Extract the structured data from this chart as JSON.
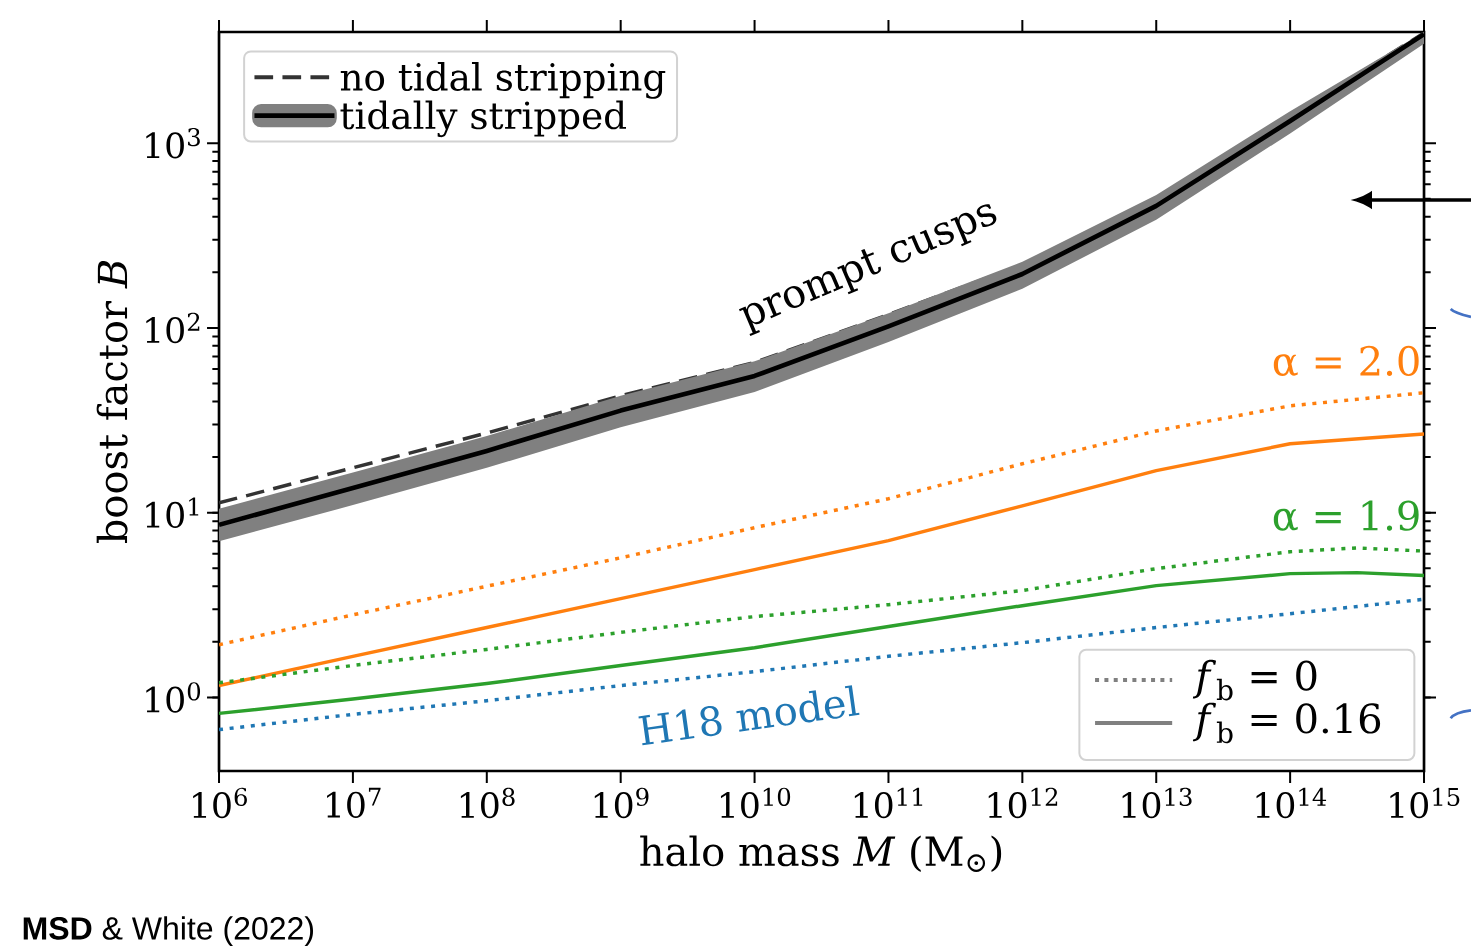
{
  "chart_data": {
    "type": "line",
    "xlabel": "halo mass *M* (M$_{⊙}$)",
    "ylabel": "boost factor *B*",
    "log": "xy",
    "legend": "top left",
    "marker": "none",
    "xlim": [
      1000000,
      1000000000000000
    ],
    "ylim": [
      0.4,
      4000
    ],
    "xticks": [
      {
        "value": 1000000.0,
        "label": "10$^{6}$"
      },
      {
        "value": 10000000.0,
        "label": "10$^{7}$"
      },
      {
        "value": 100000000.0,
        "label": "10$^{8}$"
      },
      {
        "value": 1000000000.0,
        "label": "10$^{9}$"
      },
      {
        "value": 10000000000.0,
        "label": "10$^{10}$"
      },
      {
        "value": 100000000000.0,
        "label": "10$^{11}$"
      },
      {
        "value": 1000000000000.0,
        "label": "10$^{12}$"
      },
      {
        "value": 10000000000000.0,
        "label": "10$^{13}$"
      },
      {
        "value": 100000000000000.0,
        "label": "10$^{14}$"
      },
      {
        "value": 1000000000000000.0,
        "label": "10$^{15}$"
      }
    ],
    "yticks": [
      {
        "value": 1,
        "label": "10$^{0}$"
      },
      {
        "value": 10,
        "label": "10$^{1}$"
      },
      {
        "value": 100,
        "label": "10$^{2}$"
      },
      {
        "value": 1000,
        "label": "10$^{3}$"
      }
    ],
    "x": [
      1000000.0,
      10000000.0,
      100000000.0,
      1000000000.0,
      10000000000.0,
      100000000000.0,
      1000000000000.0,
      10000000000000.0,
      100000000000000.0,
      1000000000000000.0
    ],
    "series": [
      {
        "name": "no tidal stripping",
        "color": "#333333",
        "line_style": "dashed",
        "values": [
          11.3,
          17.5,
          27,
          43,
          65,
          118,
          220,
          500,
          1400,
          3950
        ]
      },
      {
        "name": "tidally stripped",
        "color": "#000000",
        "line_style": "solid",
        "values": [
          8.6,
          13.6,
          21.6,
          35.7,
          55,
          102,
          196,
          458,
          1320,
          3890
        ],
        "lower": [
          7.0,
          11,
          17.5,
          29,
          45,
          84,
          163,
          385,
          1130,
          3450
        ],
        "upper": [
          10.5,
          16.5,
          26,
          43,
          66,
          120,
          228,
          525,
          1490,
          4000
        ]
      },
      {
        "color": "#ff7f0e",
        "line_style": "dotted",
        "values": [
          1.93,
          2.8,
          4.0,
          5.7,
          8.3,
          11.9,
          18.4,
          27.7,
          37.9,
          44.6
        ]
      },
      {
        "color": "#ff7f0e",
        "line_style": "solid",
        "values": [
          1.16,
          1.67,
          2.39,
          3.43,
          4.92,
          7.06,
          10.9,
          16.9,
          23.6,
          26.7
        ]
      },
      {
        "color": "#2ca02c",
        "line_style": "dotted",
        "x": [
          1000000.0,
          10000000.0,
          100000000.0,
          1000000000.0,
          10000000000.0,
          100000000000.0,
          1000000000000.0,
          10000000000000.0,
          100000000000000.0,
          316000000000000.0,
          1000000000000000.0
        ],
        "values": [
          1.2,
          1.49,
          1.82,
          2.25,
          2.74,
          3.18,
          3.79,
          4.98,
          6.15,
          6.45,
          6.2
        ]
      },
      {
        "color": "#2ca02c",
        "line_style": "solid",
        "x": [
          1000000.0,
          10000000.0,
          100000000.0,
          1000000000.0,
          10000000000.0,
          100000000000.0,
          1000000000000.0,
          10000000000000.0,
          100000000000000.0,
          316000000000000.0,
          1000000000000000.0
        ],
        "values": [
          0.82,
          0.98,
          1.19,
          1.49,
          1.86,
          2.42,
          3.14,
          4.03,
          4.68,
          4.74,
          4.57
        ]
      },
      {
        "color": "#1f77b4",
        "line_style": "dotted",
        "values": [
          0.67,
          0.81,
          0.96,
          1.16,
          1.38,
          1.67,
          1.98,
          2.39,
          2.84,
          3.4
        ]
      }
    ],
    "annotations": [
      "prompt cusps",
      "α = 2.0",
      "α = 1.9",
      "H18 model",
      "*f*$_{b}$ = 0",
      "*f*$_{b}$ = 0.16",
      "**MSD** & White (2022)"
    ]
  }
}
